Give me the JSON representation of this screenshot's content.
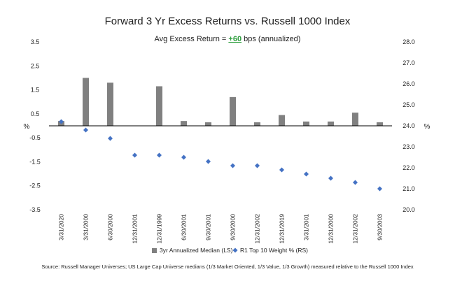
{
  "chart_data": {
    "type": "bar",
    "title": "Forward 3 Yr Excess Returns vs. Russell 1000 Index",
    "subtitle": {
      "prefix": "Avg Excess Return = ",
      "highlight": "+60",
      "suffix": " bps (annualized)"
    },
    "ylabel_left": "%",
    "ylabel_right": "%",
    "ylim_left": [
      -3.5,
      3.5
    ],
    "yticks_left": [
      "3.5",
      "2.5",
      "1.5",
      "0.5",
      "-0.5",
      "-1.5",
      "-2.5",
      "-3.5"
    ],
    "ylim_right": [
      20.0,
      28.0
    ],
    "yticks_right": [
      "28.0",
      "27.0",
      "26.0",
      "25.0",
      "24.0",
      "23.0",
      "22.0",
      "21.0",
      "20.0"
    ],
    "categories": [
      "3/31/2020",
      "3/31/2000",
      "6/30/2000",
      "12/31/2001",
      "12/31/1999",
      "6/30/2001",
      "9/30/2001",
      "9/30/2000",
      "12/31/2002",
      "12/31/2019",
      "3/31/2001",
      "12/31/2000",
      "12/31/2002",
      "9/30/2003"
    ],
    "series": [
      {
        "name": "3yr Annualized Median (LS)",
        "type": "bar",
        "axis": "left",
        "color": "#808080",
        "values": [
          0.2,
          2.0,
          1.8,
          0.0,
          1.65,
          0.2,
          0.15,
          1.2,
          0.15,
          0.45,
          0.18,
          0.18,
          0.55,
          0.15
        ]
      },
      {
        "name": "R1 Top 10 Weight % (RS)",
        "type": "scatter",
        "axis": "right",
        "color": "#4472c4",
        "marker": "diamond",
        "values": [
          24.2,
          23.8,
          23.4,
          22.6,
          22.6,
          22.5,
          22.3,
          22.1,
          22.1,
          21.9,
          21.7,
          21.5,
          21.3,
          21.0
        ]
      }
    ],
    "legend_position": "bottom",
    "grid": false
  },
  "source_note": "Source: Russell Manager Universes; US Large Cap Universe medians (1/3 Market Oriented, 1/3 Value, 1/3 Growth) measured relative to the Russell 1000 Index"
}
